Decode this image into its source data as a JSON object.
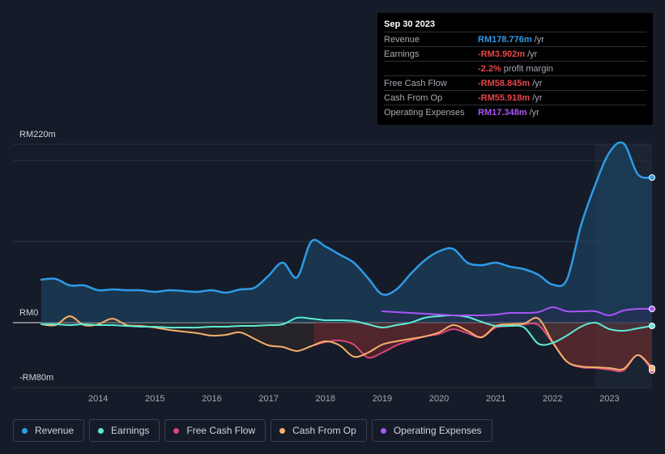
{
  "tooltip": {
    "date": "Sep 30 2023",
    "rows": [
      {
        "label": "Revenue",
        "value": "RM178.776m",
        "unit": "/yr",
        "color": "#2e9be6"
      },
      {
        "label": "Earnings",
        "value": "-RM3.902m",
        "unit": "/yr",
        "color": "#e6454a"
      },
      {
        "label": "",
        "value": "-2.2%",
        "unit": "profit margin",
        "color": "#e6454a"
      },
      {
        "label": "Free Cash Flow",
        "value": "-RM58.845m",
        "unit": "/yr",
        "color": "#e6454a"
      },
      {
        "label": "Cash From Op",
        "value": "-RM55.918m",
        "unit": "/yr",
        "color": "#e6454a"
      },
      {
        "label": "Operating Expenses",
        "value": "RM17.348m",
        "unit": "/yr",
        "color": "#a855f7"
      }
    ]
  },
  "legend": [
    {
      "label": "Revenue",
      "color": "#2e9be6"
    },
    {
      "label": "Earnings",
      "color": "#5eead4"
    },
    {
      "label": "Free Cash Flow",
      "color": "#d9467a"
    },
    {
      "label": "Cash From Op",
      "color": "#f5b06b"
    },
    {
      "label": "Operating Expenses",
      "color": "#a855f7"
    }
  ],
  "chart_data": {
    "type": "line",
    "title": "",
    "xlabel": "",
    "ylabel": "",
    "ylim": [
      -80,
      220
    ],
    "y_tick_labels": [
      "RM220m",
      "RM0",
      "-RM80m"
    ],
    "x_tick_labels": [
      "2014",
      "2015",
      "2016",
      "2017",
      "2018",
      "2019",
      "2020",
      "2021",
      "2022",
      "2023"
    ],
    "x_ticks": [
      2014,
      2015,
      2016,
      2017,
      2018,
      2019,
      2020,
      2021,
      2022,
      2023
    ],
    "xlim": [
      2012.5,
      2023.75
    ],
    "highlight_start": 2022.75,
    "series": [
      {
        "name": "Revenue",
        "color": "#2e9be6",
        "x": [
          2013.0,
          2013.25,
          2013.5,
          2013.75,
          2014.0,
          2014.25,
          2014.5,
          2014.75,
          2015.0,
          2015.25,
          2015.5,
          2015.75,
          2016.0,
          2016.25,
          2016.5,
          2016.75,
          2017.0,
          2017.25,
          2017.5,
          2017.75,
          2018.0,
          2018.25,
          2018.5,
          2018.75,
          2019.0,
          2019.25,
          2019.5,
          2019.75,
          2020.0,
          2020.25,
          2020.5,
          2020.75,
          2021.0,
          2021.25,
          2021.5,
          2021.75,
          2022.0,
          2022.25,
          2022.5,
          2022.75,
          2023.0,
          2023.25,
          2023.5,
          2023.75
        ],
        "values": [
          53,
          54,
          46,
          46,
          40,
          41,
          40,
          40,
          38,
          40,
          39,
          38,
          40,
          37,
          41,
          43,
          58,
          74,
          56,
          100,
          94,
          84,
          74,
          55,
          35,
          41,
          60,
          77,
          88,
          91,
          74,
          71,
          74,
          69,
          66,
          59,
          47,
          53,
          120,
          170,
          210,
          221,
          183,
          179
        ]
      },
      {
        "name": "Earnings",
        "color": "#5eead4",
        "x": [
          2013.0,
          2013.25,
          2013.5,
          2013.75,
          2014.0,
          2014.25,
          2014.5,
          2014.75,
          2015.0,
          2015.25,
          2015.5,
          2015.75,
          2016.0,
          2016.25,
          2016.5,
          2016.75,
          2017.0,
          2017.25,
          2017.5,
          2017.75,
          2018.0,
          2018.25,
          2018.5,
          2018.75,
          2019.0,
          2019.25,
          2019.5,
          2019.75,
          2020.0,
          2020.25,
          2020.5,
          2020.75,
          2021.0,
          2021.25,
          2021.5,
          2021.75,
          2022.0,
          2022.25,
          2022.5,
          2022.75,
          2023.0,
          2023.25,
          2023.5,
          2023.75
        ],
        "values": [
          -2,
          -2,
          -3,
          -2,
          -3,
          -3,
          -4,
          -5,
          -5,
          -6,
          -6,
          -6,
          -5,
          -5,
          -4,
          -4,
          -3,
          -2,
          6,
          5,
          3,
          3,
          2,
          -2,
          -6,
          -3,
          0,
          6,
          8,
          9,
          7,
          1,
          -4,
          -4,
          -6,
          -26,
          -25,
          -16,
          -5,
          0,
          -8,
          -10,
          -7,
          -4
        ]
      },
      {
        "name": "Free Cash Flow",
        "color": "#d9467a",
        "x": [
          2017.8,
          2018.0,
          2018.25,
          2018.5,
          2018.75,
          2019.0,
          2019.25,
          2019.5,
          2019.75,
          2020.0,
          2020.25,
          2020.5,
          2020.75,
          2021.0,
          2021.25,
          2021.5,
          2021.75,
          2022.0,
          2022.25,
          2022.5,
          2022.75,
          2023.0,
          2023.25,
          2023.5,
          2023.75
        ],
        "values": [
          -28,
          -24,
          -22,
          -27,
          -43,
          -37,
          -28,
          -22,
          -17,
          -14,
          -8,
          -13,
          -18,
          -6,
          -4,
          -2,
          -3,
          -25,
          -48,
          -55,
          -56,
          -58,
          -59,
          -40,
          -59
        ]
      },
      {
        "name": "Cash From Op",
        "color": "#f5b06b",
        "x": [
          2013.0,
          2013.25,
          2013.5,
          2013.75,
          2014.0,
          2014.25,
          2014.5,
          2014.75,
          2015.0,
          2015.25,
          2015.5,
          2015.75,
          2016.0,
          2016.25,
          2016.5,
          2016.75,
          2017.0,
          2017.25,
          2017.5,
          2017.75,
          2018.0,
          2018.25,
          2018.5,
          2018.75,
          2019.0,
          2019.25,
          2019.5,
          2019.75,
          2020.0,
          2020.25,
          2020.5,
          2020.75,
          2021.0,
          2021.25,
          2021.5,
          2021.75,
          2022.0,
          2022.25,
          2022.5,
          2022.75,
          2023.0,
          2023.25,
          2023.5,
          2023.75
        ],
        "values": [
          -2,
          -3,
          8,
          -3,
          -2,
          5,
          -3,
          -4,
          -6,
          -9,
          -11,
          -13,
          -16,
          -15,
          -12,
          -20,
          -28,
          -30,
          -35,
          -29,
          -23,
          -28,
          -42,
          -37,
          -27,
          -23,
          -20,
          -17,
          -12,
          -3,
          -10,
          -18,
          -4,
          -2,
          -1,
          5,
          -24,
          -48,
          -54,
          -55,
          -56,
          -57,
          -40,
          -56
        ]
      },
      {
        "name": "Operating Expenses",
        "color": "#a855f7",
        "x": [
          2019.0,
          2019.25,
          2019.5,
          2019.75,
          2020.0,
          2020.25,
          2020.5,
          2020.75,
          2021.0,
          2021.25,
          2021.5,
          2021.75,
          2022.0,
          2022.25,
          2022.5,
          2022.75,
          2023.0,
          2023.25,
          2023.5,
          2023.75
        ],
        "values": [
          14,
          13,
          12,
          11,
          10,
          9,
          9,
          9,
          10,
          12,
          12,
          13,
          19,
          14,
          14,
          14,
          9,
          15,
          17,
          17
        ]
      }
    ]
  }
}
